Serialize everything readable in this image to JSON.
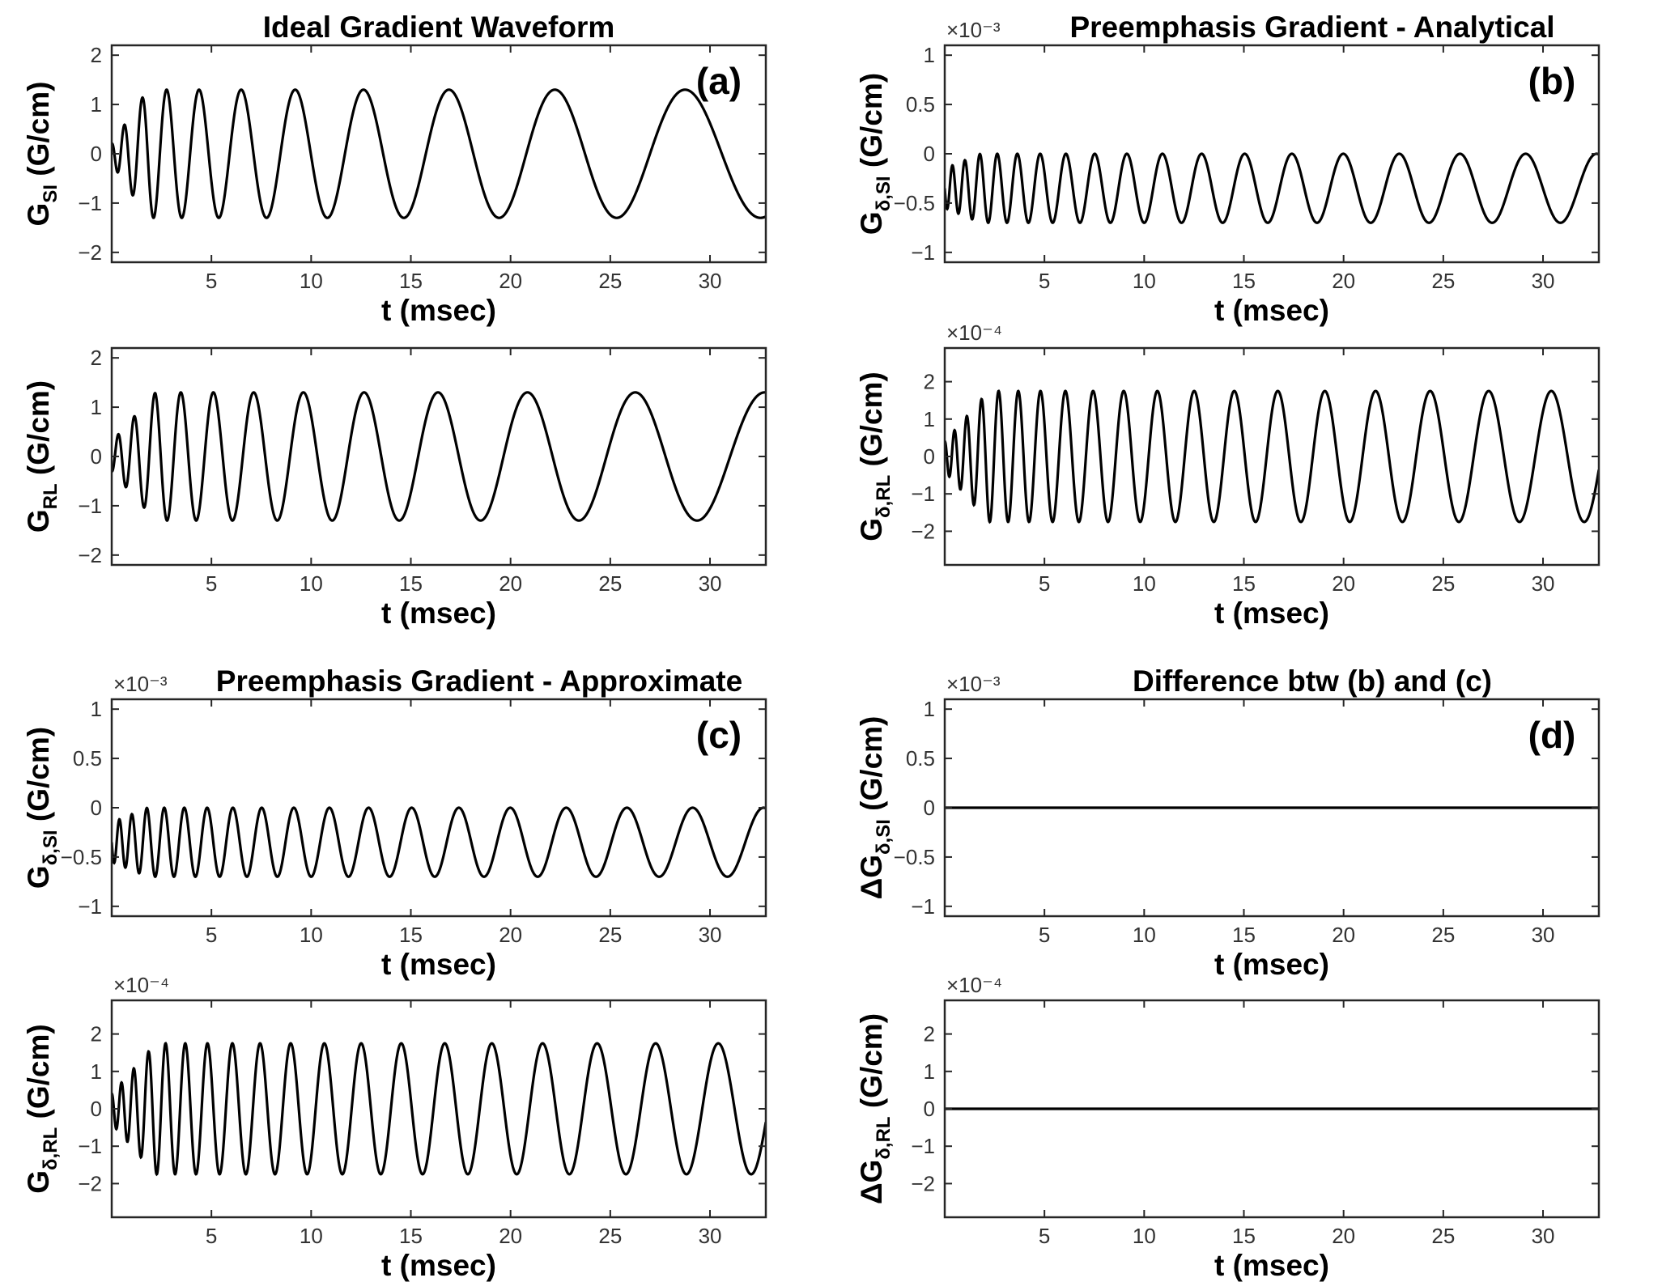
{
  "chart_data": [
    {
      "id": "a-si",
      "type": "line",
      "title": "Ideal Gradient Waveform",
      "panel_label": "(a)",
      "xlabel": "t (msec)",
      "ylabel": {
        "main": "G",
        "sub": "SI",
        "unit": " (G/cm)"
      },
      "xlim": [
        0,
        32.8
      ],
      "ylim": [
        -2.2,
        2.2
      ],
      "xticks": [
        5,
        10,
        15,
        20,
        25,
        30
      ],
      "yticks": [
        -2,
        -1,
        0,
        1,
        2
      ],
      "ytick_labels": [
        "-2",
        "-1",
        "0",
        "1",
        "2"
      ],
      "exponent": "",
      "series": [
        {
          "kind": "sine",
          "phase": 0,
          "amp_start": 0.2,
          "amp_end": 1.3,
          "ramp_ms": 1.8,
          "period_start_ms": 0.5,
          "period_end_ms": 8.0,
          "period_grow": 0.85,
          "offset": 0
        }
      ]
    },
    {
      "id": "a-rl",
      "type": "line",
      "title": "",
      "panel_label": "",
      "xlabel": "t (msec)",
      "ylabel": {
        "main": "G",
        "sub": "RL",
        "unit": " (G/cm)"
      },
      "xlim": [
        0,
        32.8
      ],
      "ylim": [
        -2.2,
        2.2
      ],
      "xticks": [
        5,
        10,
        15,
        20,
        25,
        30
      ],
      "yticks": [
        -2,
        -1,
        0,
        1,
        2
      ],
      "ytick_labels": [
        "-2",
        "-1",
        "0",
        "1",
        "2"
      ],
      "exponent": "",
      "series": [
        {
          "kind": "sine",
          "phase": 3.14159,
          "amp_start": 0.3,
          "amp_end": 1.3,
          "ramp_ms": 2.2,
          "period_start_ms": 0.6,
          "period_end_ms": 7.1,
          "period_grow": 0.9,
          "offset": 0
        }
      ]
    },
    {
      "id": "b-si",
      "type": "line",
      "title": "Preemphasis Gradient - Analytical",
      "panel_label": "(b)",
      "xlabel": "t (msec)",
      "ylabel": {
        "main": "G",
        "sub": "δ,SI",
        "unit": " (G/cm)"
      },
      "xlim": [
        0,
        32.8
      ],
      "ylim": [
        -1.1,
        1.1
      ],
      "xticks": [
        5,
        10,
        15,
        20,
        25,
        30
      ],
      "yticks": [
        -1,
        -0.5,
        0,
        0.5,
        1
      ],
      "ytick_labels": [
        "-1",
        "-0.5",
        "0",
        "0.5",
        "1"
      ],
      "exponent": "×10⁻³",
      "series": [
        {
          "kind": "sine",
          "phase": 1.5708,
          "amp_start": 0.2,
          "amp_end": 0.35,
          "ramp_ms": 1.8,
          "period_start_ms": 0.45,
          "period_end_ms": 3.7,
          "period_grow": 0.75,
          "offset": -0.35
        }
      ]
    },
    {
      "id": "b-rl",
      "type": "line",
      "title": "",
      "panel_label": "",
      "xlabel": "t (msec)",
      "ylabel": {
        "main": "G",
        "sub": "δ,RL",
        "unit": " (G/cm)"
      },
      "xlim": [
        0,
        32.8
      ],
      "ylim": [
        -2.9,
        2.9
      ],
      "xticks": [
        5,
        10,
        15,
        20,
        25,
        30
      ],
      "yticks": [
        -2,
        -1,
        0,
        1,
        2
      ],
      "ytick_labels": [
        "-2",
        "-1",
        "0",
        "1",
        "2"
      ],
      "exponent": "×10⁻⁴",
      "series": [
        {
          "kind": "sine",
          "phase": 0,
          "amp_start": 0.4,
          "amp_end": 1.75,
          "ramp_ms": 2.2,
          "period_start_ms": 0.4,
          "period_end_ms": 3.4,
          "period_grow": 0.7,
          "offset": 0
        }
      ]
    },
    {
      "id": "c-si",
      "type": "line",
      "title": "Preemphasis Gradient - Approximate",
      "panel_label": "(c)",
      "xlabel": "t (msec)",
      "ylabel": {
        "main": "G",
        "sub": "δ,SI",
        "unit": " (G/cm)"
      },
      "xlim": [
        0,
        32.8
      ],
      "ylim": [
        -1.1,
        1.1
      ],
      "xticks": [
        5,
        10,
        15,
        20,
        25,
        30
      ],
      "yticks": [
        -1,
        -0.5,
        0,
        0.5,
        1
      ],
      "ytick_labels": [
        "-1",
        "-0.5",
        "0",
        "0.5",
        "1"
      ],
      "exponent": "×10⁻³",
      "series": [
        {
          "kind": "sine",
          "phase": 1.5708,
          "amp_start": 0.2,
          "amp_end": 0.35,
          "ramp_ms": 1.8,
          "period_start_ms": 0.45,
          "period_end_ms": 3.7,
          "period_grow": 0.75,
          "offset": -0.35
        }
      ]
    },
    {
      "id": "c-rl",
      "type": "line",
      "title": "",
      "panel_label": "",
      "xlabel": "t (msec)",
      "ylabel": {
        "main": "G",
        "sub": "δ,RL",
        "unit": " (G/cm)"
      },
      "xlim": [
        0,
        32.8
      ],
      "ylim": [
        -2.9,
        2.9
      ],
      "xticks": [
        5,
        10,
        15,
        20,
        25,
        30
      ],
      "yticks": [
        -2,
        -1,
        0,
        1,
        2
      ],
      "ytick_labels": [
        "-2",
        "-1",
        "0",
        "1",
        "2"
      ],
      "exponent": "×10⁻⁴",
      "series": [
        {
          "kind": "sine",
          "phase": 0,
          "amp_start": 0.4,
          "amp_end": 1.75,
          "ramp_ms": 2.2,
          "period_start_ms": 0.4,
          "period_end_ms": 3.4,
          "period_grow": 0.7,
          "offset": 0
        }
      ]
    },
    {
      "id": "d-si",
      "type": "line",
      "title": "Difference btw (b) and (c)",
      "panel_label": "(d)",
      "xlabel": "t (msec)",
      "ylabel": {
        "main": "ΔG",
        "sub": "δ,SI",
        "unit": " (G/cm)"
      },
      "xlim": [
        0,
        32.8
      ],
      "ylim": [
        -1.1,
        1.1
      ],
      "xticks": [
        5,
        10,
        15,
        20,
        25,
        30
      ],
      "yticks": [
        -1,
        -0.5,
        0,
        0.5,
        1
      ],
      "ytick_labels": [
        "-1",
        "-0.5",
        "0",
        "0.5",
        "1"
      ],
      "exponent": "×10⁻³",
      "series": [
        {
          "kind": "zero"
        }
      ]
    },
    {
      "id": "d-rl",
      "type": "line",
      "title": "",
      "panel_label": "",
      "xlabel": "t (msec)",
      "ylabel": {
        "main": "ΔG",
        "sub": "δ,RL",
        "unit": " (G/cm)"
      },
      "xlim": [
        0,
        32.8
      ],
      "ylim": [
        -2.9,
        2.9
      ],
      "xticks": [
        5,
        10,
        15,
        20,
        25,
        30
      ],
      "yticks": [
        -2,
        -1,
        0,
        1,
        2
      ],
      "ytick_labels": [
        "-2",
        "-1",
        "0",
        "1",
        "2"
      ],
      "exponent": "×10⁻⁴",
      "series": [
        {
          "kind": "zero"
        }
      ]
    }
  ]
}
